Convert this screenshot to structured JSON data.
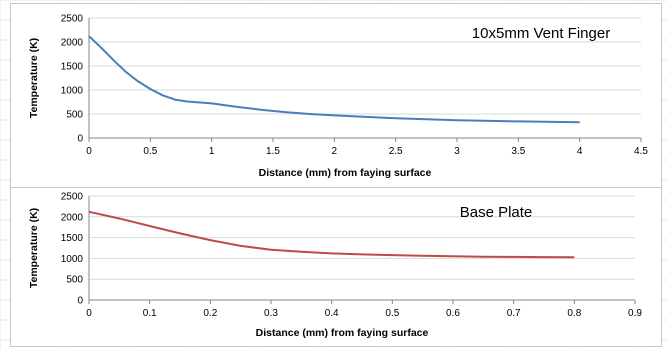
{
  "chart_data": [
    {
      "type": "line",
      "title": "10x5mm Vent Finger",
      "xlabel": "Distance (mm) from faying surface",
      "ylabel": "Temperature (K)",
      "xlim": [
        0,
        4.5
      ],
      "ylim": [
        0,
        2500
      ],
      "x_ticks": [
        "0",
        "0.5",
        "1",
        "1.5",
        "2",
        "2.5",
        "3",
        "3.5",
        "4",
        "4.5"
      ],
      "y_ticks": [
        "0",
        "500",
        "1000",
        "1500",
        "2000",
        "2500"
      ],
      "grid": true,
      "legend": "none",
      "series": [
        {
          "color": "#4a7ebb",
          "x": [
            0,
            0.1,
            0.2,
            0.3,
            0.4,
            0.5,
            0.6,
            0.7,
            0.8,
            1.0,
            1.2,
            1.4,
            1.6,
            1.8,
            2.0,
            2.5,
            3.0,
            3.5,
            4.0
          ],
          "y": [
            2120,
            1880,
            1620,
            1380,
            1180,
            1020,
            890,
            800,
            760,
            720,
            650,
            590,
            540,
            500,
            470,
            410,
            370,
            345,
            330
          ]
        }
      ]
    },
    {
      "type": "line",
      "title": "Base Plate",
      "xlabel": "Distance (mm) from faying surface",
      "ylabel": "Temperature (K)",
      "xlim": [
        0,
        0.9
      ],
      "ylim": [
        0,
        2500
      ],
      "x_ticks": [
        "0",
        "0.1",
        "0.2",
        "0.3",
        "0.4",
        "0.5",
        "0.6",
        "0.7",
        "0.8",
        "0.9"
      ],
      "y_ticks": [
        "0",
        "500",
        "1000",
        "1500",
        "2000",
        "2500"
      ],
      "grid": true,
      "legend": "none",
      "series": [
        {
          "color": "#be4b48",
          "x": [
            0,
            0.05,
            0.1,
            0.15,
            0.2,
            0.25,
            0.3,
            0.35,
            0.4,
            0.45,
            0.5,
            0.55,
            0.6,
            0.65,
            0.7,
            0.75,
            0.8
          ],
          "y": [
            2120,
            1960,
            1780,
            1600,
            1440,
            1300,
            1210,
            1160,
            1120,
            1095,
            1080,
            1065,
            1050,
            1040,
            1035,
            1032,
            1030
          ]
        }
      ]
    }
  ]
}
